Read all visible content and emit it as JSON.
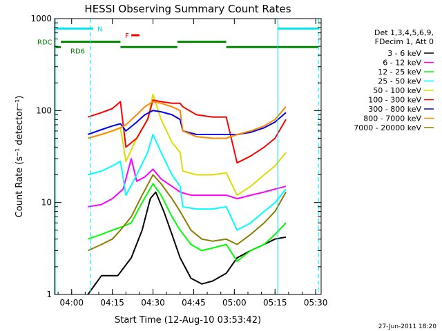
{
  "chart_data": {
    "type": "line",
    "title": "HESSI Observing Summary Count Rates",
    "xlabel": "Start Time (12-Aug-10 03:53:42)",
    "ylabel": "Count Rate (s⁻¹ detector⁻¹)",
    "y_scale": "log",
    "ylim": [
      1,
      1000
    ],
    "xlim": [
      "03:53:42",
      "05:32:00"
    ],
    "x_ticks": [
      "04:00",
      "04:15",
      "04:30",
      "04:45",
      "05:00",
      "05:15",
      "05:30"
    ],
    "y_ticks": [
      "1",
      "10",
      "100",
      "1000"
    ],
    "legend": {
      "placement": "right",
      "header": [
        "Det 1,3,4,5,6,9,",
        "FDecim 1, Att 0"
      ]
    },
    "flags": [
      {
        "label": "N",
        "color": "#00e5ee",
        "segments": [
          [
            "03:53:42",
            "04:08"
          ],
          [
            "05:16",
            "05:31"
          ]
        ],
        "level": 780
      },
      {
        "label": "F",
        "color": "#ee0000",
        "segments": [
          [
            "04:22",
            "04:25"
          ]
        ],
        "level": 660
      },
      {
        "label": "RDC",
        "color": "#008800",
        "segments": [
          [
            "03:56",
            "04:18"
          ],
          [
            "04:39",
            "04:57"
          ]
        ],
        "level": 560
      },
      {
        "label": "RD6",
        "color": "#008800",
        "segments": [
          [
            "03:53:42",
            "03:56"
          ],
          [
            "04:18",
            "04:39"
          ],
          [
            "04:57",
            "05:31"
          ]
        ],
        "level": 490
      }
    ],
    "night_markers": [
      "03:54",
      "04:07",
      "05:16",
      "05:31"
    ],
    "series": [
      {
        "name": "3 - 6 keV",
        "color": "#000000",
        "points": [
          [
            "04:06",
            1.0
          ],
          [
            "04:11",
            1.6
          ],
          [
            "04:17",
            1.6
          ],
          [
            "04:22",
            2.5
          ],
          [
            "04:26",
            5
          ],
          [
            "04:29",
            11
          ],
          [
            "04:31",
            13
          ],
          [
            "04:34",
            8
          ],
          [
            "04:37",
            4.5
          ],
          [
            "04:40",
            2.5
          ],
          [
            "04:44",
            1.5
          ],
          [
            "04:48",
            1.3
          ],
          [
            "04:52",
            1.4
          ],
          [
            "04:57",
            1.7
          ],
          [
            "05:01",
            2.5
          ],
          [
            "05:06",
            3
          ],
          [
            "05:11",
            3.5
          ],
          [
            "05:15",
            4
          ],
          [
            "05:19",
            4.2
          ]
        ]
      },
      {
        "name": "6 - 12 keV",
        "color": "#ff00ff",
        "points": [
          [
            "04:06",
            9
          ],
          [
            "04:11",
            9.5
          ],
          [
            "04:15",
            11
          ],
          [
            "04:19",
            14
          ],
          [
            "04:22",
            30
          ],
          [
            "04:24",
            17
          ],
          [
            "04:27",
            19
          ],
          [
            "04:30",
            23
          ],
          [
            "04:33",
            18
          ],
          [
            "04:37",
            15
          ],
          [
            "04:40",
            13
          ],
          [
            "04:44",
            12
          ],
          [
            "04:50",
            12
          ],
          [
            "04:57",
            12
          ],
          [
            "05:01",
            11
          ],
          [
            "05:06",
            12
          ],
          [
            "05:11",
            13
          ],
          [
            "05:15",
            14
          ],
          [
            "05:19",
            15
          ]
        ]
      },
      {
        "name": "12 - 25 keV",
        "color": "#00ff00",
        "points": [
          [
            "04:06",
            4
          ],
          [
            "04:11",
            4.5
          ],
          [
            "04:15",
            5
          ],
          [
            "04:19",
            5.5
          ],
          [
            "04:22",
            6
          ],
          [
            "04:26",
            10
          ],
          [
            "04:30",
            16
          ],
          [
            "04:33",
            12
          ],
          [
            "04:37",
            7
          ],
          [
            "04:40",
            5
          ],
          [
            "04:44",
            3.5
          ],
          [
            "04:48",
            3
          ],
          [
            "04:52",
            3.2
          ],
          [
            "04:57",
            3.5
          ],
          [
            "05:01",
            2.3
          ],
          [
            "05:06",
            3
          ],
          [
            "05:11",
            3.5
          ],
          [
            "05:15",
            4.5
          ],
          [
            "05:19",
            6
          ]
        ]
      },
      {
        "name": "25 - 50 keV",
        "color": "#00ffff",
        "points": [
          [
            "04:06",
            20
          ],
          [
            "04:11",
            22
          ],
          [
            "04:15",
            25
          ],
          [
            "04:18",
            28
          ],
          [
            "04:20",
            12
          ],
          [
            "04:24",
            20
          ],
          [
            "04:28",
            35
          ],
          [
            "04:30",
            55
          ],
          [
            "04:33",
            35
          ],
          [
            "04:37",
            20
          ],
          [
            "04:40",
            15
          ],
          [
            "04:41",
            9
          ],
          [
            "04:46",
            8.5
          ],
          [
            "04:52",
            8.5
          ],
          [
            "04:57",
            9
          ],
          [
            "05:01",
            5
          ],
          [
            "05:06",
            6
          ],
          [
            "05:11",
            8
          ],
          [
            "05:15",
            10
          ],
          [
            "05:19",
            14
          ]
        ]
      },
      {
        "name": "50 - 100 keV",
        "color": "#dddd00",
        "points": [
          [
            "04:06",
            50
          ],
          [
            "04:11",
            55
          ],
          [
            "04:15",
            60
          ],
          [
            "04:18",
            65
          ],
          [
            "04:20",
            28
          ],
          [
            "04:24",
            50
          ],
          [
            "04:28",
            80
          ],
          [
            "04:30",
            150
          ],
          [
            "04:33",
            80
          ],
          [
            "04:37",
            45
          ],
          [
            "04:40",
            35
          ],
          [
            "04:41",
            22
          ],
          [
            "04:46",
            20
          ],
          [
            "04:52",
            20
          ],
          [
            "04:57",
            21
          ],
          [
            "05:01",
            12
          ],
          [
            "05:06",
            15
          ],
          [
            "05:11",
            20
          ],
          [
            "05:15",
            25
          ],
          [
            "05:19",
            35
          ]
        ]
      },
      {
        "name": "100 - 300 keV",
        "color": "#ff0000",
        "points": [
          [
            "04:06",
            85
          ],
          [
            "04:11",
            95
          ],
          [
            "04:15",
            105
          ],
          [
            "04:18",
            125
          ],
          [
            "04:20",
            40
          ],
          [
            "04:24",
            50
          ],
          [
            "04:28",
            80
          ],
          [
            "04:30",
            130
          ],
          [
            "04:33",
            125
          ],
          [
            "04:37",
            120
          ],
          [
            "04:40",
            120
          ],
          [
            "04:41",
            110
          ],
          [
            "04:46",
            90
          ],
          [
            "04:52",
            85
          ],
          [
            "04:57",
            85
          ],
          [
            "05:01",
            27
          ],
          [
            "05:06",
            32
          ],
          [
            "05:11",
            40
          ],
          [
            "05:15",
            50
          ],
          [
            "05:19",
            80
          ]
        ]
      },
      {
        "name": "300 - 800 keV",
        "color": "#0000ee",
        "points": [
          [
            "04:06",
            55
          ],
          [
            "04:11",
            62
          ],
          [
            "04:15",
            68
          ],
          [
            "04:18",
            72
          ],
          [
            "04:20",
            60
          ],
          [
            "04:24",
            75
          ],
          [
            "04:27",
            90
          ],
          [
            "04:30",
            100
          ],
          [
            "04:33",
            97
          ],
          [
            "04:37",
            90
          ],
          [
            "04:40",
            80
          ],
          [
            "04:41",
            60
          ],
          [
            "04:46",
            55
          ],
          [
            "04:52",
            55
          ],
          [
            "04:57",
            55
          ],
          [
            "05:01",
            55
          ],
          [
            "05:06",
            58
          ],
          [
            "05:11",
            65
          ],
          [
            "05:15",
            75
          ],
          [
            "05:19",
            95
          ]
        ]
      },
      {
        "name": "800 - 7000 keV",
        "color": "#ff8800",
        "points": [
          [
            "04:06",
            50
          ],
          [
            "04:11",
            55
          ],
          [
            "04:15",
            60
          ],
          [
            "04:18",
            65
          ],
          [
            "04:20",
            70
          ],
          [
            "04:24",
            90
          ],
          [
            "04:27",
            110
          ],
          [
            "04:30",
            125
          ],
          [
            "04:33",
            120
          ],
          [
            "04:37",
            110
          ],
          [
            "04:40",
            100
          ],
          [
            "04:41",
            60
          ],
          [
            "04:46",
            52
          ],
          [
            "04:52",
            50
          ],
          [
            "04:57",
            50
          ],
          [
            "05:01",
            55
          ],
          [
            "05:06",
            60
          ],
          [
            "05:11",
            68
          ],
          [
            "05:15",
            80
          ],
          [
            "05:19",
            110
          ]
        ]
      },
      {
        "name": "7000 - 20000 keV",
        "color": "#8b7d00",
        "points": [
          [
            "04:06",
            3
          ],
          [
            "04:11",
            3.5
          ],
          [
            "04:15",
            4
          ],
          [
            "04:18",
            5
          ],
          [
            "04:22",
            7
          ],
          [
            "04:26",
            12
          ],
          [
            "04:30",
            20
          ],
          [
            "04:33",
            16
          ],
          [
            "04:37",
            11
          ],
          [
            "04:40",
            8
          ],
          [
            "04:44",
            5
          ],
          [
            "04:48",
            4
          ],
          [
            "04:52",
            3.8
          ],
          [
            "04:57",
            4
          ],
          [
            "05:01",
            3.5
          ],
          [
            "05:06",
            4.5
          ],
          [
            "05:11",
            6
          ],
          [
            "05:15",
            8
          ],
          [
            "05:19",
            13
          ]
        ]
      }
    ]
  },
  "footer": {
    "date_stamp": "27-Jun-2011 18:20"
  }
}
